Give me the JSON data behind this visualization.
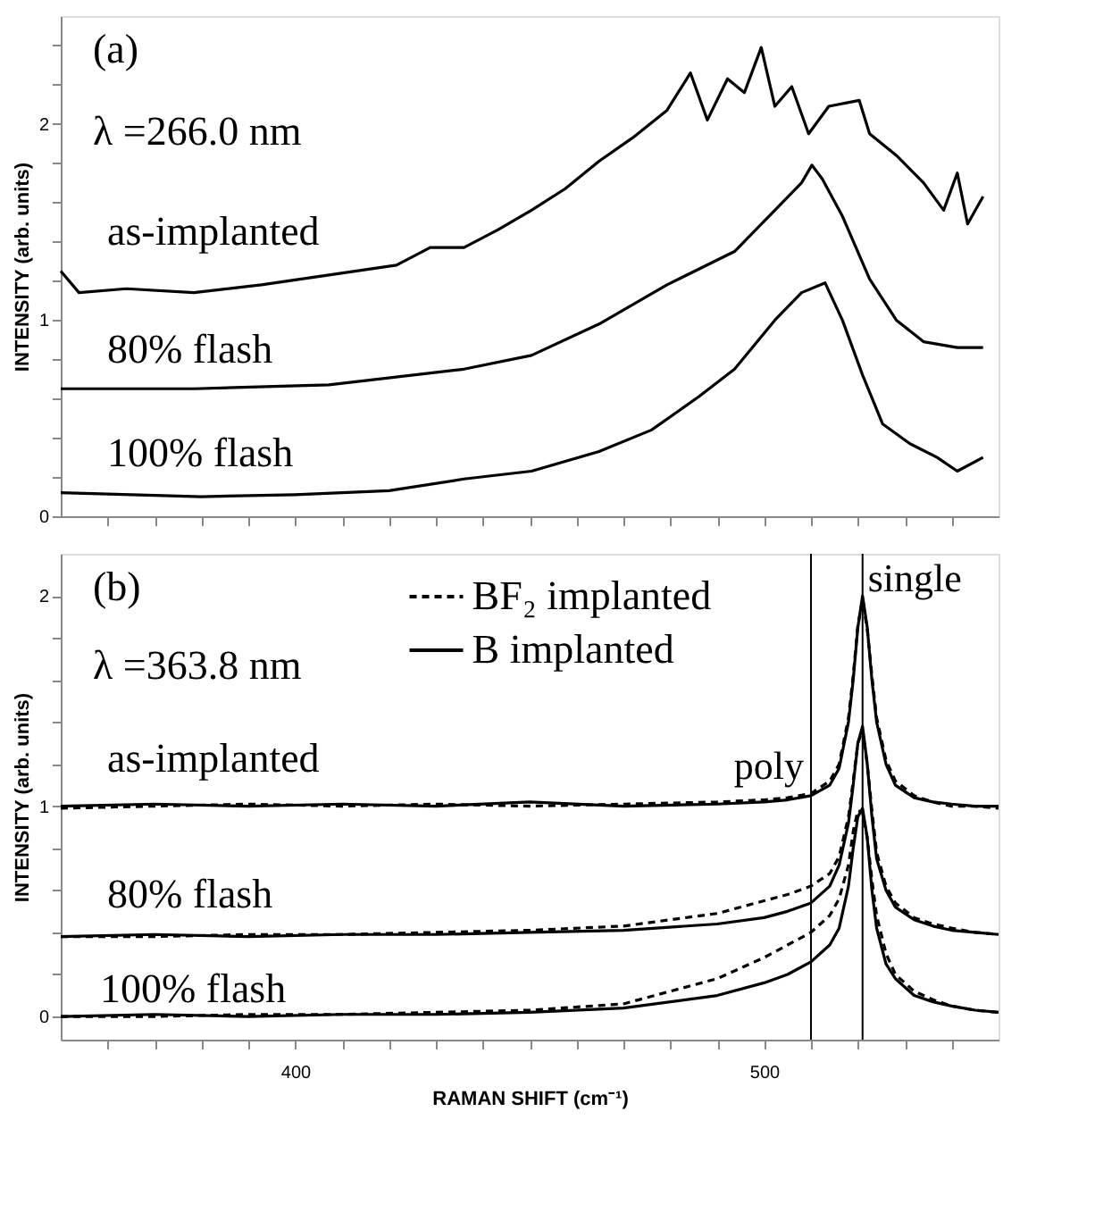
{
  "chart_data": [
    {
      "type": "line",
      "ylabel": "INTENSITY (arb. units)",
      "tick_labels": "y",
      "xlim": [
        350,
        550
      ],
      "ylim": [
        0,
        2.55
      ],
      "xticks": [
        {
          "value": 360,
          "label": null
        },
        {
          "value": 370,
          "label": null
        },
        {
          "value": 380,
          "label": null
        },
        {
          "value": 390,
          "label": null
        },
        400,
        {
          "value": 410,
          "label": null
        },
        {
          "value": 420,
          "label": null
        },
        {
          "value": 430,
          "label": null
        },
        {
          "value": 440,
          "label": null
        },
        {
          "value": 450,
          "label": null
        },
        {
          "value": 460,
          "label": null
        },
        {
          "value": 470,
          "label": null
        },
        {
          "value": 480,
          "label": null
        },
        {
          "value": 490,
          "label": null
        },
        500,
        {
          "value": 510,
          "label": null
        },
        {
          "value": 520,
          "label": null
        },
        {
          "value": 530,
          "label": null
        },
        {
          "value": 540,
          "label": null
        }
      ],
      "yticks": [
        0,
        {
          "value": 0.2,
          "label": null
        },
        {
          "value": 0.4,
          "label": null
        },
        {
          "value": 0.6,
          "label": null
        },
        {
          "value": 0.8,
          "label": null
        },
        1,
        {
          "value": 1.2,
          "label": null
        },
        {
          "value": 1.4,
          "label": null
        },
        {
          "value": 1.6,
          "label": null
        },
        {
          "value": 1.8,
          "label": null
        },
        2,
        {
          "value": 2.2,
          "label": null
        },
        {
          "value": 2.4,
          "label": null
        }
      ],
      "line_style": "solid",
      "annotations": [
        "(a)",
        "λ =266.0 nm",
        "as-implanted",
        "80% flash",
        "100% flash"
      ],
      "series": [
        {
          "color": "#000000",
          "x": [
            350,
            353.9,
            364,
            378.4,
            392.8,
            407.2,
            421.6,
            428.8,
            436,
            443.2,
            450.4,
            457.6,
            464.8,
            472,
            479.3,
            484.3,
            487.9,
            492.2,
            495.8,
            499.4,
            502.3,
            505.9,
            509.5,
            513.8,
            520.3,
            522.5,
            528.2,
            534,
            538.3,
            541.2,
            543.4,
            546.7
          ],
          "values": [
            1.25,
            1.14,
            1.16,
            1.14,
            1.18,
            1.23,
            1.28,
            1.37,
            1.37,
            1.46,
            1.56,
            1.67,
            1.81,
            1.93,
            2.07,
            2.26,
            2.02,
            2.23,
            2.16,
            2.39,
            2.09,
            2.19,
            1.95,
            2.09,
            2.12,
            1.95,
            1.84,
            1.7,
            1.56,
            1.75,
            1.49,
            1.63
          ]
        },
        {
          "color": "#000000",
          "x": [
            350,
            378.4,
            407.2,
            436,
            450.4,
            464.8,
            479.3,
            493.7,
            502.3,
            508,
            510.2,
            512.4,
            516.7,
            522.5,
            528.2,
            534,
            541.2,
            546.7
          ],
          "values": [
            0.65,
            0.65,
            0.67,
            0.75,
            0.82,
            0.98,
            1.18,
            1.35,
            1.56,
            1.7,
            1.79,
            1.72,
            1.53,
            1.21,
            1.0,
            0.89,
            0.86,
            0.86
          ]
        },
        {
          "color": "#000000",
          "x": [
            350,
            380,
            400,
            420,
            436,
            450.4,
            464.8,
            476,
            486.1,
            493.7,
            502.3,
            508,
            513,
            516.7,
            521,
            525.3,
            531.1,
            536.9,
            541.2,
            546.7
          ],
          "values": [
            0.12,
            0.1,
            0.11,
            0.13,
            0.19,
            0.23,
            0.33,
            0.44,
            0.61,
            0.75,
            1.0,
            1.14,
            1.19,
            1.0,
            0.72,
            0.47,
            0.37,
            0.3,
            0.23,
            0.3
          ]
        }
      ]
    },
    {
      "type": "line",
      "xlabel": "RAMAN SHIFT (cm⁻¹)",
      "ylabel": "INTENSITY (arb. units)",
      "xlim": [
        350,
        550
      ],
      "ylim": [
        -0.11,
        2.2
      ],
      "legend": "top",
      "xticks": [
        {
          "value": 360,
          "label": null
        },
        {
          "value": 370,
          "label": null
        },
        {
          "value": 380,
          "label": null
        },
        {
          "value": 390,
          "label": null
        },
        400,
        {
          "value": 410,
          "label": null
        },
        {
          "value": 420,
          "label": null
        },
        {
          "value": 430,
          "label": null
        },
        {
          "value": 440,
          "label": null
        },
        {
          "value": 450,
          "label": null
        },
        {
          "value": 460,
          "label": null
        },
        {
          "value": 470,
          "label": null
        },
        {
          "value": 480,
          "label": null
        },
        {
          "value": 490,
          "label": null
        },
        500,
        {
          "value": 510,
          "label": null
        },
        {
          "value": 520,
          "label": null
        },
        {
          "value": 530,
          "label": null
        },
        {
          "value": 540,
          "label": null
        }
      ],
      "yticks": [
        0,
        {
          "value": 0.2,
          "label": null
        },
        {
          "value": 0.4,
          "label": null
        },
        {
          "value": 0.6,
          "label": null
        },
        {
          "value": 0.8,
          "label": null
        },
        1,
        {
          "value": 1.2,
          "label": null
        },
        {
          "value": 1.4,
          "label": null
        },
        {
          "value": 1.6,
          "label": null
        },
        {
          "value": 1.8,
          "label": null
        },
        2
      ],
      "x": [
        350,
        370,
        390,
        410,
        430,
        450,
        470,
        490,
        500,
        505,
        510,
        514,
        516,
        518,
        519,
        520,
        521,
        522,
        523,
        524,
        526,
        528,
        532,
        536,
        540,
        545,
        550
      ],
      "annotations": [
        "(b)",
        "λ =363.8 nm",
        "as-implanted",
        "80% flash",
        "100% flash"
      ],
      "ref_lines": [
        {
          "axis": "x",
          "value": 510,
          "label": "poly"
        },
        {
          "axis": "x",
          "value": 521,
          "label": "single"
        }
      ],
      "series": [
        {
          "name": "BF₂ implanted",
          "color": "#000000",
          "line_style": "dashed",
          "values": [
            0.99,
            1.0,
            1.01,
            1.0,
            1.01,
            1.0,
            1.01,
            1.02,
            1.03,
            1.04,
            1.06,
            1.12,
            1.2,
            1.42,
            1.62,
            1.86,
            1.98,
            1.84,
            1.62,
            1.42,
            1.22,
            1.12,
            1.05,
            1.02,
            1.0,
            1.0,
            0.99
          ]
        },
        {
          "name": "B implanted",
          "color": "#000000",
          "line_style": "solid",
          "values": [
            1.0,
            1.01,
            1.0,
            1.01,
            1.0,
            1.02,
            1.0,
            1.01,
            1.02,
            1.03,
            1.05,
            1.1,
            1.18,
            1.4,
            1.6,
            1.85,
            2.0,
            1.85,
            1.6,
            1.4,
            1.2,
            1.1,
            1.04,
            1.02,
            1.01,
            1.0,
            1.0
          ]
        },
        {
          "color": "#000000",
          "line_style": "dashed",
          "values": [
            0.38,
            0.38,
            0.39,
            0.39,
            0.4,
            0.41,
            0.43,
            0.49,
            0.55,
            0.58,
            0.62,
            0.68,
            0.76,
            0.95,
            1.12,
            1.3,
            1.36,
            1.2,
            0.98,
            0.78,
            0.62,
            0.54,
            0.47,
            0.44,
            0.42,
            0.4,
            0.39
          ]
        },
        {
          "color": "#000000",
          "line_style": "solid",
          "values": [
            0.38,
            0.39,
            0.38,
            0.39,
            0.39,
            0.4,
            0.41,
            0.44,
            0.47,
            0.5,
            0.54,
            0.62,
            0.72,
            0.92,
            1.1,
            1.3,
            1.38,
            1.2,
            0.95,
            0.75,
            0.6,
            0.52,
            0.46,
            0.43,
            0.41,
            0.4,
            0.39
          ]
        },
        {
          "color": "#000000",
          "line_style": "dashed",
          "values": [
            0.0,
            0.0,
            0.01,
            0.01,
            0.02,
            0.03,
            0.06,
            0.18,
            0.28,
            0.34,
            0.4,
            0.48,
            0.56,
            0.72,
            0.88,
            0.98,
            0.97,
            0.85,
            0.65,
            0.48,
            0.3,
            0.2,
            0.12,
            0.08,
            0.05,
            0.03,
            0.02
          ]
        },
        {
          "color": "#000000",
          "line_style": "solid",
          "values": [
            0.0,
            0.01,
            0.0,
            0.01,
            0.01,
            0.02,
            0.04,
            0.1,
            0.16,
            0.2,
            0.26,
            0.34,
            0.42,
            0.62,
            0.8,
            0.95,
            0.99,
            0.85,
            0.6,
            0.42,
            0.25,
            0.18,
            0.1,
            0.07,
            0.05,
            0.03,
            0.02
          ]
        }
      ]
    }
  ]
}
